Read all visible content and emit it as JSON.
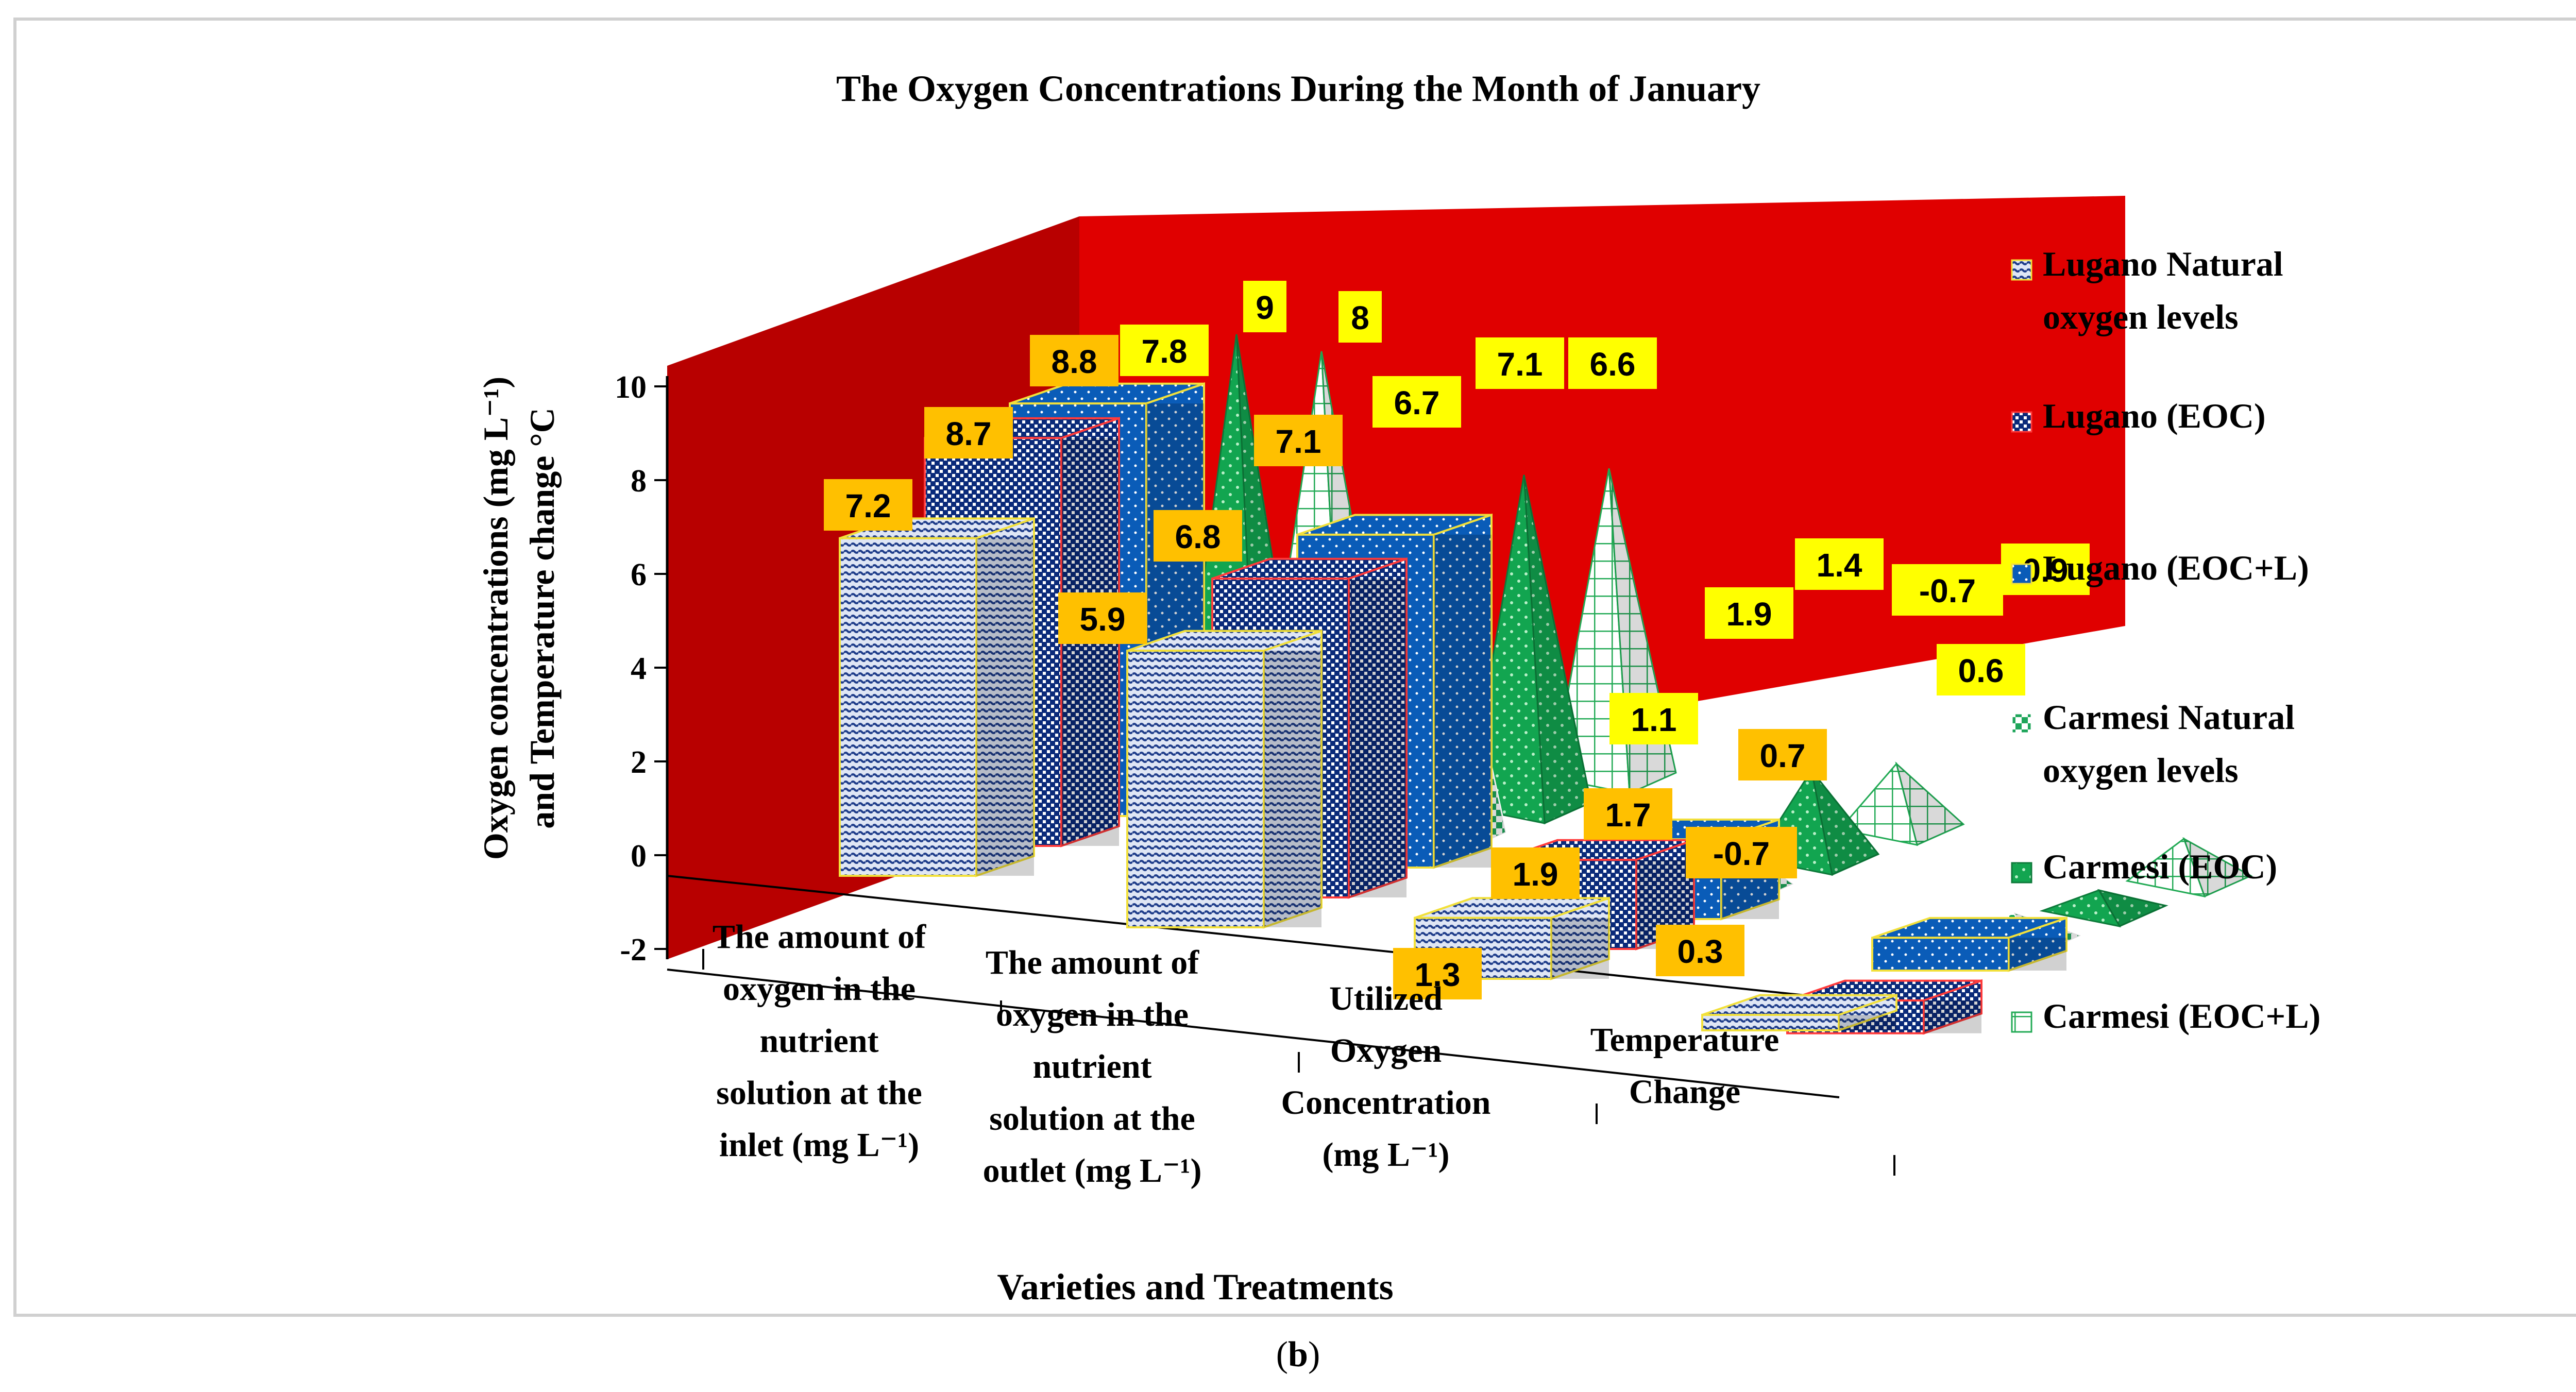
{
  "caption": {
    "open": "(",
    "letter": "b",
    "close": ")"
  },
  "chart_data": {
    "type": "bar",
    "subtype": "3d-column-pyramid",
    "title": "The Oxygen Concentrations During the Month of January",
    "xlabel": "Varieties and Treatments",
    "ylabel_line1": "Oxygen  concentrations  (mg L⁻¹)",
    "ylabel_line2": "and Temperature  change °C",
    "ylim": [
      -2,
      10
    ],
    "yticks": [
      "-2",
      "0",
      "2",
      "4",
      "6",
      "8",
      "10"
    ],
    "categories": [
      [
        "The amount of",
        "oxygen in the",
        "nutrient",
        "solution at the",
        "inlet (mg L⁻¹)"
      ],
      [
        "The amount of",
        "oxygen in the",
        "nutrient",
        "solution at the",
        "outlet (mg L⁻¹)"
      ],
      [
        "Utilized",
        "Oxygen",
        "Concentration",
        "(mg L⁻¹)"
      ],
      [
        "Temperature",
        "Change"
      ]
    ],
    "series": [
      {
        "name": "Lugano Natural oxygen levels",
        "legend": [
          "Lugano Natural",
          "oxygen levels"
        ],
        "values": [
          7.2,
          5.9,
          1.3,
          0.3
        ],
        "labels": [
          "7.2",
          "5.9",
          "1.3",
          "0.3"
        ],
        "shape": "box",
        "color": "#1f3d8a",
        "edge": "#f2e03a"
      },
      {
        "name": "Lugano (EOC)",
        "legend": [
          "Lugano  (EOC)"
        ],
        "values": [
          8.7,
          6.8,
          1.9,
          -0.7
        ],
        "labels": [
          "8.7",
          "6.8",
          "1.9",
          "-0.7"
        ],
        "shape": "box",
        "color": "#0a2a7a",
        "edge": "#ff3b3b"
      },
      {
        "name": "Lugano (EOC+L)",
        "legend": [
          "Lugano (EOC+L)"
        ],
        "values": [
          8.8,
          7.1,
          1.7,
          0.7
        ],
        "labels": [
          "8.8",
          "7.1",
          "1.7",
          "0.7"
        ],
        "shape": "box",
        "color": "#0a5cb8",
        "edge": "#f2e03a"
      },
      {
        "name": "Carmesi Natural oxygen levels",
        "legend": [
          "Carmesi Natural",
          "oxygen levels"
        ],
        "values": [
          7.8,
          6.7,
          1.1,
          0.6
        ],
        "labels": [
          "7.8",
          "6.7",
          "1.1",
          "0.6"
        ],
        "shape": "pyramid",
        "color": "#1ea55a",
        "edge": "#ffffff"
      },
      {
        "name": "Carmesi (EOC)",
        "legend": [
          "Carmesi  (EOC)"
        ],
        "values": [
          9,
          7.1,
          1.9,
          -0.7
        ],
        "labels": [
          "9",
          "7.1",
          "1.9",
          "-0.7"
        ],
        "shape": "pyramid",
        "color": "#12a550",
        "edge": "#0d7a3a"
      },
      {
        "name": "Carmesi (EOC+L)",
        "legend": [
          "Carmesi (EOC+L)"
        ],
        "values": [
          8,
          6.6,
          1.4,
          0.9
        ],
        "labels": [
          "8",
          "6.6",
          "1.4",
          "0.9"
        ],
        "shape": "pyramid",
        "color": "#ffffff",
        "edge": "#22aa55"
      }
    ],
    "colors": {
      "wall": "#e00000",
      "wall_dark": "#b80000",
      "label_lugano": "#ffc000",
      "label_carmesi": "#ffff00"
    }
  }
}
